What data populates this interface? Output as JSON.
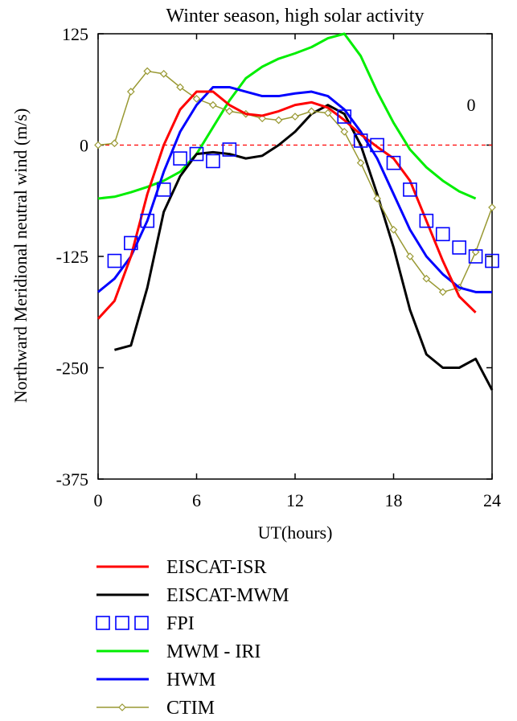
{
  "chart_data": {
    "type": "line",
    "title": "Winter season, high solar activity",
    "xlabel": "UT(hours)",
    "ylabel": "Northward Meridional neutral wind (m/s)",
    "xlim": [
      0,
      24
    ],
    "ylim": [
      -375,
      125
    ],
    "xticks": [
      0,
      6,
      12,
      18,
      24
    ],
    "yticks": [
      125,
      0,
      -125,
      -250,
      -375
    ],
    "annotation": "0",
    "reference_line": {
      "y": 0,
      "color": "#ff0000",
      "style": "dashed"
    },
    "legend_position": "bottom",
    "series": [
      {
        "name": "EISCAT-ISR",
        "color": "#ff0000",
        "marker": "none",
        "x": [
          0,
          1,
          2,
          3,
          4,
          5,
          6,
          7,
          8,
          9,
          10,
          11,
          12,
          13,
          14,
          15,
          16,
          17,
          18,
          19,
          20,
          21,
          22,
          23
        ],
        "y": [
          -195,
          -175,
          -125,
          -55,
          0,
          40,
          60,
          60,
          45,
          35,
          33,
          38,
          45,
          48,
          42,
          28,
          12,
          -2,
          -15,
          -40,
          -85,
          -130,
          -170,
          -188
        ]
      },
      {
        "name": "EISCAT-MWM",
        "color": "#000000",
        "marker": "none",
        "x": [
          1,
          2,
          3,
          4,
          5,
          6,
          7,
          8,
          9,
          10,
          11,
          12,
          13,
          14,
          15,
          16,
          17,
          18,
          19,
          20,
          21,
          22,
          23,
          24
        ],
        "y": [
          -230,
          -225,
          -160,
          -75,
          -35,
          -10,
          -8,
          -10,
          -15,
          -12,
          0,
          15,
          35,
          45,
          35,
          0,
          -55,
          -115,
          -185,
          -235,
          -250,
          -250,
          -240,
          -275
        ]
      },
      {
        "name": "FPI",
        "color": "#0000ff",
        "marker": "square",
        "x": [
          1,
          2,
          3,
          4,
          5,
          6,
          7,
          8,
          15,
          16,
          17,
          18,
          19,
          20,
          21,
          22,
          23,
          24
        ],
        "y": [
          -130,
          -110,
          -85,
          -50,
          -15,
          -10,
          -18,
          -5,
          32,
          5,
          0,
          -20,
          -50,
          -85,
          -100,
          -115,
          -125,
          -130
        ]
      },
      {
        "name": "MWM - IRI",
        "color": "#00ee00",
        "marker": "none",
        "x": [
          0,
          1,
          2,
          3,
          4,
          5,
          6,
          7,
          8,
          9,
          10,
          11,
          12,
          13,
          14,
          15,
          16,
          17,
          18,
          19,
          20,
          21,
          22,
          23
        ],
        "y": [
          -60,
          -58,
          -53,
          -47,
          -40,
          -30,
          -10,
          20,
          50,
          75,
          88,
          97,
          103,
          110,
          120,
          125,
          100,
          60,
          25,
          -5,
          -25,
          -40,
          -52,
          -60
        ]
      },
      {
        "name": "HWM",
        "color": "#0000ff",
        "marker": "none",
        "x": [
          0,
          1,
          2,
          3,
          4,
          5,
          6,
          7,
          8,
          9,
          10,
          11,
          12,
          13,
          14,
          15,
          16,
          17,
          18,
          19,
          20,
          21,
          22,
          23,
          24
        ],
        "y": [
          -165,
          -150,
          -125,
          -85,
          -30,
          15,
          45,
          65,
          65,
          60,
          55,
          55,
          58,
          60,
          55,
          40,
          15,
          -15,
          -55,
          -95,
          -125,
          -145,
          -160,
          -165,
          -165
        ]
      },
      {
        "name": "CTIM",
        "color": "#999933",
        "marker": "diamond",
        "x": [
          0,
          1,
          2,
          3,
          4,
          5,
          6,
          7,
          8,
          9,
          10,
          11,
          12,
          13,
          14,
          15,
          16,
          17,
          18,
          19,
          20,
          21,
          22,
          23,
          24
        ],
        "y": [
          0,
          2,
          60,
          83,
          80,
          65,
          52,
          45,
          38,
          35,
          30,
          28,
          32,
          38,
          36,
          15,
          -20,
          -60,
          -95,
          -125,
          -150,
          -165,
          -160,
          -120,
          -70
        ]
      }
    ]
  }
}
